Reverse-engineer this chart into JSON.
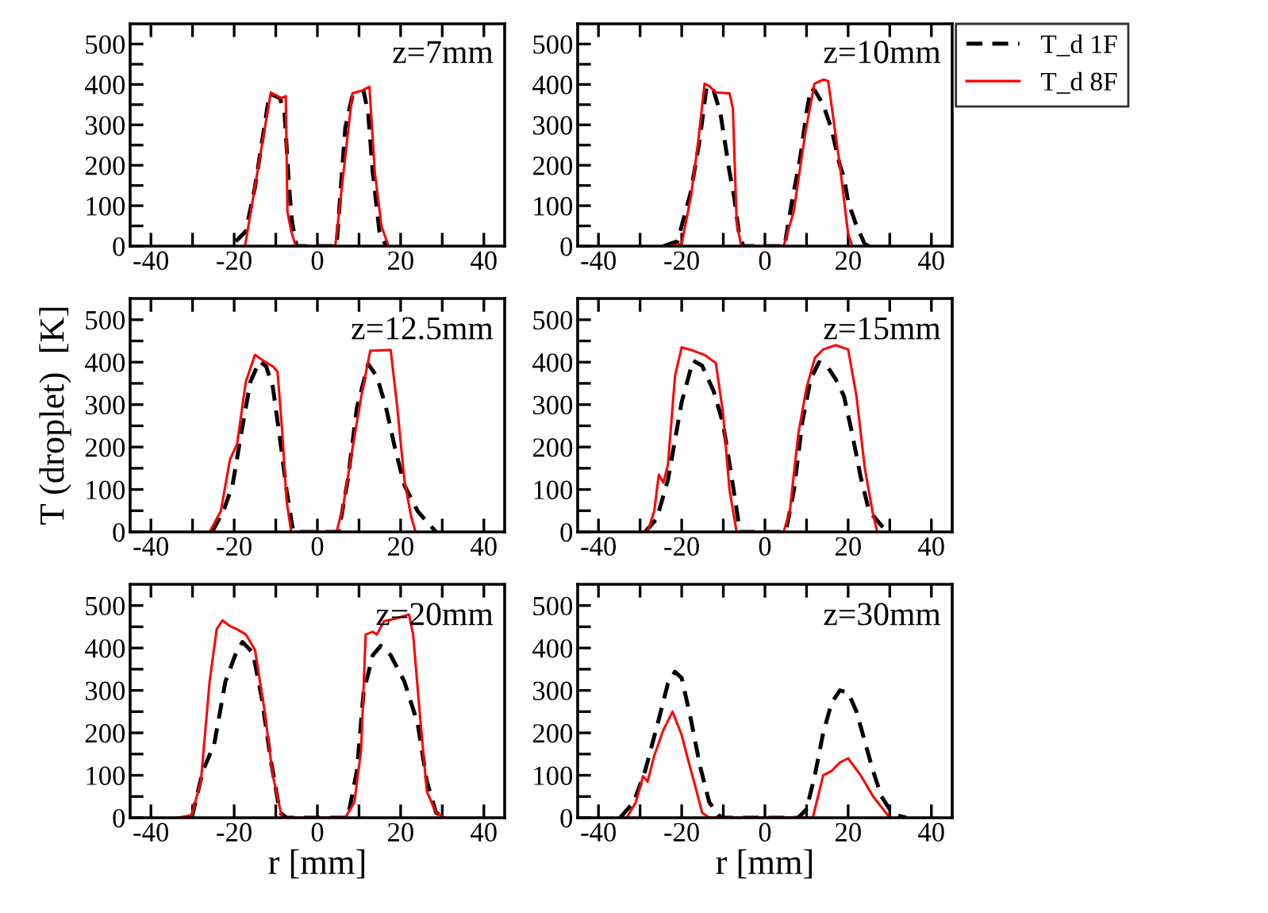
{
  "chart_data": [
    {
      "type": "line",
      "xlim": [
        -45,
        45
      ],
      "ylim": [
        0,
        550
      ],
      "xticks": [
        -40,
        {
          "value": -30,
          "label": null
        },
        -20,
        {
          "value": -10,
          "label": null
        },
        0,
        {
          "value": 10,
          "label": null
        },
        20,
        {
          "value": 30,
          "label": null
        },
        40
      ],
      "yticks": [
        0,
        {
          "value": 50,
          "label": null
        },
        100,
        {
          "value": 150,
          "label": null
        },
        200,
        {
          "value": 250,
          "label": null
        },
        300,
        {
          "value": 350,
          "label": null
        },
        400,
        {
          "value": 450,
          "label": null
        },
        500
      ],
      "annotations": [
        "z=7mm"
      ],
      "series": [
        {
          "color": "#000000",
          "line_style": "dashed",
          "x": [
            -19.6,
            -17.2,
            -15,
            -11.5,
            -9,
            -7.9,
            -6.8,
            -6.1,
            -5,
            4.6,
            6.7,
            8.4,
            11.1,
            12.2,
            13.3,
            14.9,
            16.5
          ],
          "values": [
            12,
            37,
            146,
            378,
            366,
            330,
            146,
            61,
            0,
            0,
            293,
            372,
            384,
            329,
            183,
            37,
            0
          ]
        },
        {
          "color": "#ff0000",
          "line_style": "solid",
          "x": [
            -17.4,
            -11.2,
            -8.7,
            -7.6,
            -7.2,
            -6.3,
            -5.2,
            4.3,
            8.4,
            10.5,
            12.5,
            13.8,
            15.4,
            17.1
          ],
          "values": [
            0,
            380,
            366,
            371,
            85,
            37,
            0,
            0,
            378,
            384,
            394,
            183,
            49,
            0
          ]
        }
      ]
    },
    {
      "type": "line",
      "xlim": [
        -45,
        45
      ],
      "ylim": [
        0,
        550
      ],
      "xticks": [
        -40,
        {
          "value": -30,
          "label": null
        },
        -20,
        {
          "value": -10,
          "label": null
        },
        0,
        {
          "value": 10,
          "label": null
        },
        20,
        {
          "value": 30,
          "label": null
        },
        40
      ],
      "yticks": [
        0,
        {
          "value": 50,
          "label": null
        },
        100,
        {
          "value": 150,
          "label": null
        },
        200,
        {
          "value": 250,
          "label": null
        },
        300,
        {
          "value": 350,
          "label": null
        },
        400,
        {
          "value": 450,
          "label": null
        },
        500
      ],
      "annotations": [
        "z=10mm"
      ],
      "legend": "right",
      "series": [
        {
          "name": "T_d 1F",
          "color": "#000000",
          "line_style": "dashed",
          "x": [
            -24.4,
            -21,
            -17.8,
            -15.6,
            -14,
            -12.3,
            -10.7,
            -8.5,
            -7.4,
            -6.3,
            -5.2,
            4.7,
            6.5,
            8.5,
            10,
            11,
            12,
            14,
            16,
            18,
            19,
            20,
            22,
            24,
            25
          ],
          "values": [
            0,
            12,
            134,
            268,
            396,
            384,
            329,
            183,
            122,
            37,
            0,
            0,
            110,
            220,
            330,
            390,
            385,
            350,
            290,
            200,
            170,
            110,
            50,
            5,
            0
          ]
        },
        {
          "name": "T_d 8F",
          "color": "#ff0000",
          "line_style": "solid",
          "x": [
            -23.3,
            -20,
            -17.8,
            -16.2,
            -14.5,
            -13.4,
            -11.8,
            -8.5,
            -7.7,
            -6.8,
            -5.7,
            4.5,
            6.9,
            9.7,
            11.9,
            14.1,
            15.2,
            18,
            20,
            21
          ],
          "values": [
            0,
            6,
            122,
            244,
            402,
            396,
            380,
            378,
            341,
            61,
            0,
            0,
            85,
            280,
            402,
            412,
            408,
            200,
            30,
            0
          ]
        }
      ]
    },
    {
      "type": "line",
      "xlim": [
        -45,
        45
      ],
      "ylim": [
        0,
        550
      ],
      "xticks": [
        -40,
        {
          "value": -30,
          "label": null
        },
        -20,
        {
          "value": -10,
          "label": null
        },
        0,
        {
          "value": 10,
          "label": null
        },
        20,
        {
          "value": 30,
          "label": null
        },
        40
      ],
      "yticks": [
        0,
        {
          "value": 50,
          "label": null
        },
        100,
        {
          "value": 150,
          "label": null
        },
        200,
        {
          "value": 250,
          "label": null
        },
        300,
        {
          "value": 350,
          "label": null
        },
        400,
        {
          "value": 450,
          "label": null
        },
        500
      ],
      "ylabel": "T (droplet)  [K]",
      "annotations": [
        "z=12.5mm"
      ],
      "series": [
        {
          "color": "#000000",
          "line_style": "dashed",
          "x": [
            -25.3,
            -22.6,
            -20.4,
            -18.3,
            -16.1,
            -13.9,
            -12.3,
            -10.7,
            -9,
            -7.4,
            -5.8,
            5.1,
            7.3,
            9.5,
            12.2,
            14.3,
            16.5,
            18.7,
            20.9,
            24.1,
            26.3,
            28.5
          ],
          "values": [
            0,
            49,
            110,
            232,
            354,
            402,
            390,
            341,
            220,
            98,
            0,
            0,
            122,
            293,
            396,
            366,
            293,
            195,
            110,
            49,
            24,
            0
          ]
        },
        {
          "color": "#ff0000",
          "line_style": "solid",
          "x": [
            -25.9,
            -23.2,
            -21,
            -19.3,
            -17.2,
            -15,
            -12.8,
            -10.7,
            -9.6,
            -8.5,
            -7.4,
            -6.3,
            4.6,
            6.2,
            8.4,
            10.5,
            12.7,
            17.6,
            19.2,
            20.9,
            22.5,
            23.6
          ],
          "values": [
            0,
            49,
            171,
            207,
            354,
            417,
            402,
            390,
            378,
            244,
            73,
            0,
            0,
            61,
            195,
            317,
            427,
            429,
            293,
            122,
            37,
            0
          ]
        }
      ]
    },
    {
      "type": "line",
      "xlim": [
        -45,
        45
      ],
      "ylim": [
        0,
        550
      ],
      "xticks": [
        -40,
        {
          "value": -30,
          "label": null
        },
        -20,
        {
          "value": -10,
          "label": null
        },
        0,
        {
          "value": 10,
          "label": null
        },
        20,
        {
          "value": 30,
          "label": null
        },
        40
      ],
      "yticks": [
        0,
        {
          "value": 50,
          "label": null
        },
        100,
        {
          "value": 150,
          "label": null
        },
        200,
        {
          "value": 250,
          "label": null
        },
        300,
        {
          "value": 350,
          "label": null
        },
        400,
        {
          "value": 450,
          "label": null
        },
        500
      ],
      "annotations": [
        "z=15mm"
      ],
      "series": [
        {
          "color": "#000000",
          "line_style": "dashed",
          "x": [
            -28.8,
            -26,
            -23.3,
            -20,
            -17.3,
            -15.1,
            -12.3,
            -10.1,
            -7.9,
            -6,
            5,
            7,
            9,
            11,
            13,
            15,
            17,
            19,
            21,
            23,
            25,
            28,
            30
          ],
          "values": [
            0,
            31,
            123,
            306,
            404,
            392,
            331,
            257,
            123,
            0,
            0,
            100,
            260,
            360,
            400,
            390,
            360,
            320,
            230,
            130,
            50,
            15,
            0
          ]
        },
        {
          "color": "#ff0000",
          "line_style": "solid",
          "x": [
            -28.2,
            -26.6,
            -25.5,
            -24.4,
            -23.3,
            -21.6,
            -20,
            -17.8,
            -14.5,
            -11.8,
            -10.1,
            -8.5,
            -6.8,
            4.5,
            6,
            8,
            10,
            12,
            14,
            17,
            20,
            22,
            24,
            26,
            27
          ],
          "values": [
            0,
            49,
            135,
            116,
            159,
            368,
            435,
            429,
            417,
            398,
            282,
            98,
            0,
            0,
            50,
            230,
            340,
            410,
            430,
            440,
            430,
            320,
            150,
            40,
            0
          ]
        }
      ]
    },
    {
      "type": "line",
      "xlim": [
        -45,
        45
      ],
      "ylim": [
        0,
        550
      ],
      "xticks": [
        -40,
        {
          "value": -30,
          "label": null
        },
        -20,
        {
          "value": -10,
          "label": null
        },
        0,
        {
          "value": 10,
          "label": null
        },
        20,
        {
          "value": 30,
          "label": null
        },
        40
      ],
      "yticks": [
        0,
        {
          "value": 50,
          "label": null
        },
        100,
        {
          "value": 150,
          "label": null
        },
        200,
        {
          "value": 250,
          "label": null
        },
        300,
        {
          "value": 350,
          "label": null
        },
        400,
        {
          "value": 450,
          "label": null
        },
        500
      ],
      "xlabel": "r [mm]",
      "annotations": [
        "z=20mm"
      ],
      "series": [
        {
          "color": "#000000",
          "line_style": "dashed",
          "x": [
            -30.2,
            -27.5,
            -24.8,
            -22.1,
            -19.3,
            -18,
            -15.5,
            -13.4,
            -11.2,
            -9,
            -7.4,
            7.3,
            9.5,
            11.1,
            13.3,
            15.2,
            17.6,
            20.9,
            24.1,
            26.3,
            28.5,
            30.7
          ],
          "values": [
            0,
            111,
            173,
            321,
            395,
            414,
            389,
            284,
            136,
            12,
            0,
            0,
            111,
            296,
            383,
            405,
            383,
            321,
            222,
            86,
            12,
            0
          ]
        },
        {
          "color": "#ff0000",
          "line_style": "solid",
          "x": [
            -33.5,
            -30.2,
            -28,
            -25.9,
            -24.2,
            -22.8,
            -20.9,
            -19.3,
            -17.2,
            -15,
            -12.8,
            -10.7,
            -8.5,
            6.7,
            8.9,
            10.5,
            11.6,
            13.3,
            14.3,
            16,
            18.7,
            22,
            23,
            24.7,
            26.3,
            28.5,
            30.7
          ],
          "values": [
            0,
            6,
            86,
            321,
            444,
            465,
            451,
            444,
            432,
            395,
            259,
            99,
            0,
            0,
            37,
            160,
            432,
            438,
            432,
            463,
            469,
            479,
            432,
            235,
            62,
            12,
            0
          ]
        }
      ]
    },
    {
      "type": "line",
      "xlim": [
        -45,
        45
      ],
      "ylim": [
        0,
        550
      ],
      "xticks": [
        -40,
        {
          "value": -30,
          "label": null
        },
        -20,
        {
          "value": -10,
          "label": null
        },
        0,
        {
          "value": 10,
          "label": null
        },
        20,
        {
          "value": 30,
          "label": null
        },
        40
      ],
      "yticks": [
        0,
        {
          "value": 50,
          "label": null
        },
        100,
        {
          "value": 150,
          "label": null
        },
        200,
        {
          "value": 250,
          "label": null
        },
        300,
        {
          "value": 350,
          "label": null
        },
        400,
        {
          "value": 450,
          "label": null
        },
        500
      ],
      "xlabel": "r [mm]",
      "annotations": [
        "z=30mm"
      ],
      "series": [
        {
          "color": "#000000",
          "line_style": "dashed",
          "x": [
            -34.8,
            -31.5,
            -28.8,
            -25.5,
            -23.3,
            -21.6,
            -20,
            -17.8,
            -15.6,
            -13.4,
            -11.2,
            -10.1,
            8,
            10,
            12,
            14,
            16,
            18,
            20,
            22,
            24,
            26,
            28,
            30,
            32,
            34
          ],
          "values": [
            0,
            37,
            110,
            232,
            317,
            344,
            329,
            232,
            122,
            37,
            6,
            0,
            0,
            20,
            100,
            200,
            270,
            300,
            295,
            250,
            180,
            110,
            50,
            20,
            5,
            0
          ]
        },
        {
          "color": "#ff0000",
          "line_style": "solid",
          "x": [
            -33.2,
            -31,
            -29.3,
            -28.2,
            -26.6,
            -24.4,
            -22.2,
            -20,
            -18.4,
            -16.7,
            -15.1,
            -13.4,
            11.5,
            14,
            16,
            18,
            20,
            23,
            26,
            30
          ],
          "values": [
            0,
            37,
            98,
            85,
            146,
            207,
            250,
            195,
            134,
            73,
            12,
            0,
            0,
            100,
            110,
            130,
            140,
            100,
            50,
            0
          ]
        }
      ]
    }
  ]
}
